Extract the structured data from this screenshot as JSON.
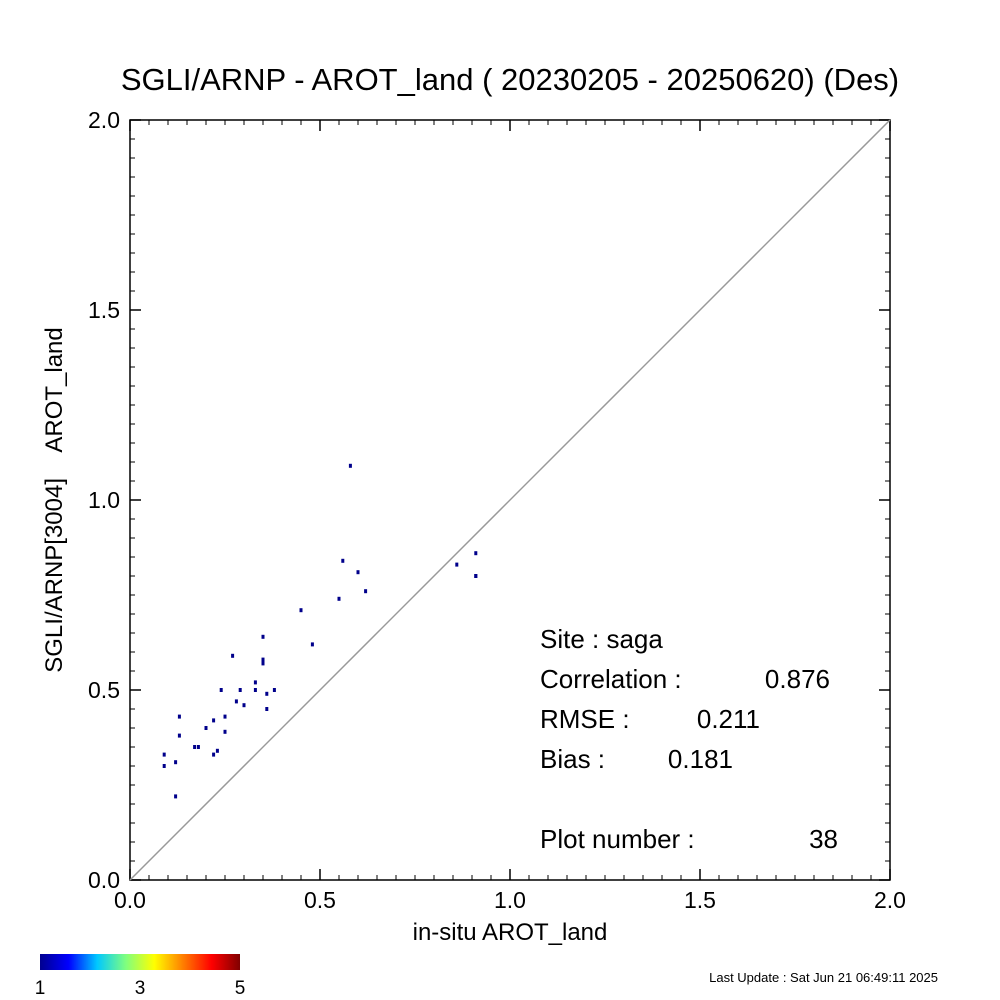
{
  "chart_data": {
    "type": "scatter",
    "title": "SGLI/ARNP - AROT_land ( 20230205 - 20250620) (Des)",
    "xlabel": "in-situ AROT_land",
    "ylabel": "SGLI/ARNP[3004]    AROT_land",
    "xlim": [
      0.0,
      2.0
    ],
    "ylim": [
      0.0,
      2.0
    ],
    "xticks": [
      "0.0",
      "0.5",
      "1.0",
      "1.5",
      "2.0"
    ],
    "yticks": [
      "0.0",
      "0.5",
      "1.0",
      "1.5",
      "2.0"
    ],
    "reference_line": "1:1",
    "marker_color": "#00008b",
    "points": [
      [
        0.09,
        0.33
      ],
      [
        0.09,
        0.3
      ],
      [
        0.12,
        0.31
      ],
      [
        0.12,
        0.22
      ],
      [
        0.13,
        0.43
      ],
      [
        0.13,
        0.38
      ],
      [
        0.17,
        0.35
      ],
      [
        0.18,
        0.35
      ],
      [
        0.2,
        0.4
      ],
      [
        0.22,
        0.42
      ],
      [
        0.22,
        0.33
      ],
      [
        0.23,
        0.34
      ],
      [
        0.24,
        0.5
      ],
      [
        0.25,
        0.43
      ],
      [
        0.25,
        0.39
      ],
      [
        0.27,
        0.59
      ],
      [
        0.28,
        0.47
      ],
      [
        0.29,
        0.5
      ],
      [
        0.3,
        0.46
      ],
      [
        0.33,
        0.52
      ],
      [
        0.33,
        0.5
      ],
      [
        0.35,
        0.64
      ],
      [
        0.35,
        0.58
      ],
      [
        0.35,
        0.57
      ],
      [
        0.36,
        0.49
      ],
      [
        0.36,
        0.45
      ],
      [
        0.38,
        0.5
      ],
      [
        0.45,
        0.71
      ],
      [
        0.48,
        0.62
      ],
      [
        0.55,
        0.74
      ],
      [
        0.56,
        0.84
      ],
      [
        0.58,
        1.09
      ],
      [
        0.6,
        0.81
      ],
      [
        0.62,
        0.76
      ],
      [
        0.86,
        0.83
      ],
      [
        0.91,
        0.86
      ],
      [
        0.91,
        0.8
      ],
      [
        0.91,
        0.8
      ]
    ],
    "stats": {
      "site_label": "Site : saga",
      "correlation_label": "Correlation :",
      "correlation_value": "0.876",
      "rmse_label": "RMSE :",
      "rmse_value": "0.211",
      "bias_label": "Bias :",
      "bias_value": "0.181",
      "plot_number_label": "Plot number :",
      "plot_number_value": "38"
    },
    "colorbar": {
      "colors": [
        "#00008f",
        "#0000ff",
        "#00c8ff",
        "#7fff7f",
        "#ffff00",
        "#ff7f00",
        "#ff0000",
        "#800000"
      ],
      "labels": [
        "1",
        "3",
        "5"
      ]
    }
  },
  "footer": {
    "last_update": "Last Update : Sat Jun 21 06:49:11 2025"
  }
}
